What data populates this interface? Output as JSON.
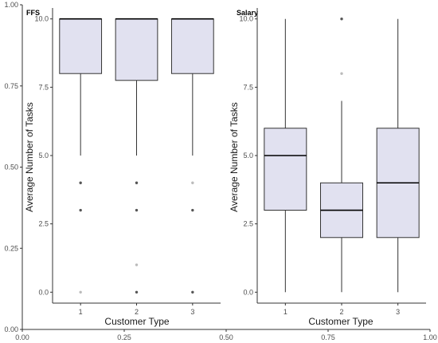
{
  "colors": {
    "box_fill": "#e1e1f0",
    "box_stroke": "#333333",
    "axis": "#333333",
    "outlier_dark": "#555555",
    "outlier_light": "#bbbbbb"
  },
  "outer_axes": {
    "x_ticks": [
      "0.00",
      "0.25",
      "0.50",
      "0.75",
      "1.00"
    ],
    "y_ticks": [
      "0.00",
      "0.25",
      "0.50",
      "0.75",
      "1.00"
    ]
  },
  "chart_data": [
    {
      "type": "box",
      "title": "FFS",
      "xlabel": "Customer Type",
      "ylabel": "Average Number of Tasks",
      "ylim": [
        -0.4,
        10.4
      ],
      "categories": [
        "1",
        "2",
        "3"
      ],
      "y_ticks": [
        "0.0",
        "2.5",
        "5.0",
        "7.5",
        "10.0"
      ],
      "boxes": [
        {
          "category": "1",
          "min": 5.0,
          "q1": 8.0,
          "median": 10.0,
          "q3": 10.0,
          "max": 10.0,
          "outliers": [
            {
              "y": 4.0,
              "shade": "dark"
            },
            {
              "y": 3.0,
              "shade": "dark"
            },
            {
              "y": 0.0,
              "shade": "light"
            }
          ]
        },
        {
          "category": "2",
          "min": 5.0,
          "q1": 7.75,
          "median": 10.0,
          "q3": 10.0,
          "max": 10.0,
          "outliers": [
            {
              "y": 4.0,
              "shade": "dark"
            },
            {
              "y": 3.0,
              "shade": "dark"
            },
            {
              "y": 1.0,
              "shade": "light"
            },
            {
              "y": 0.0,
              "shade": "dark"
            }
          ]
        },
        {
          "category": "3",
          "min": 5.0,
          "q1": 8.0,
          "median": 10.0,
          "q3": 10.0,
          "max": 10.0,
          "outliers": [
            {
              "y": 4.0,
              "shade": "light"
            },
            {
              "y": 3.0,
              "shade": "dark"
            },
            {
              "y": 0.0,
              "shade": "dark"
            }
          ]
        }
      ]
    },
    {
      "type": "box",
      "title": "Salary",
      "xlabel": "Customer Type",
      "ylabel": "Average Number of Tasks",
      "ylim": [
        -0.4,
        10.4
      ],
      "categories": [
        "1",
        "2",
        "3"
      ],
      "y_ticks": [
        "0.0",
        "2.5",
        "5.0",
        "7.5",
        "10.0"
      ],
      "boxes": [
        {
          "category": "1",
          "min": 0.0,
          "q1": 3.0,
          "median": 5.0,
          "q3": 6.0,
          "max": 10.0,
          "outliers": []
        },
        {
          "category": "2",
          "min": 0.0,
          "q1": 2.0,
          "median": 3.0,
          "q3": 4.0,
          "max": 7.0,
          "outliers": [
            {
              "y": 10.0,
              "shade": "dark"
            },
            {
              "y": 8.0,
              "shade": "light"
            }
          ]
        },
        {
          "category": "3",
          "min": 0.0,
          "q1": 2.0,
          "median": 4.0,
          "q3": 6.0,
          "max": 10.0,
          "outliers": []
        }
      ]
    }
  ]
}
